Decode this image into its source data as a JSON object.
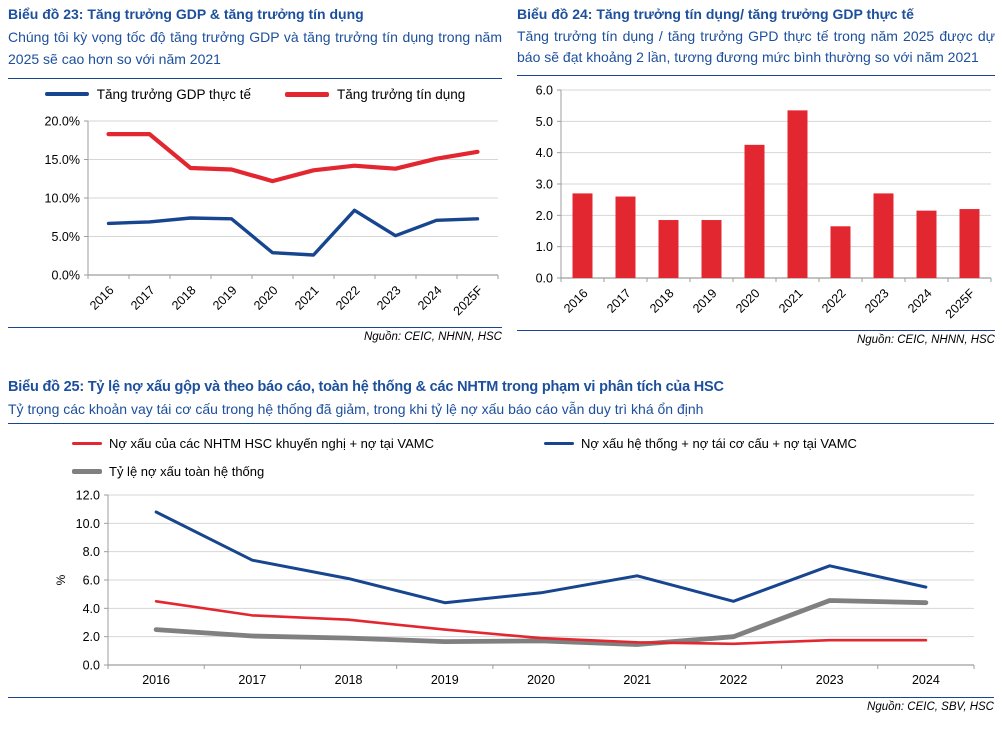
{
  "colors": {
    "navy_text": "#1C4F9C",
    "divider_navy": "#17458F",
    "series_red": "#E32730",
    "series_blue": "#17458F",
    "series_gray": "#808080",
    "gridline": "#D6D6D6",
    "axis_gray": "#9E9E9E"
  },
  "panels": [
    {
      "id": "chart23",
      "title": "Biểu đồ 23: Tăng trưởng GDP & tăng trưởng tín dụng",
      "subtitle": "Chúng tôi kỳ vọng tốc độ tăng trưởng GDP và tăng trưởng tín dụng trong năm 2025 sẽ cao hơn so với năm 2021",
      "source": "Nguồn: CEIC, NHNN, HSC"
    },
    {
      "id": "chart24",
      "title": "Biểu đồ 24: Tăng trưởng tín dụng/ tăng trưởng GDP thực tế",
      "subtitle": "Tăng trưởng tín dụng / tăng trưởng GPD thực tế trong năm 2025 được dự báo sẽ đạt khoảng 2 lần, tương đương mức bình thường so với năm 2021",
      "source": "Nguồn: CEIC, NHNN, HSC"
    },
    {
      "id": "chart25",
      "title": "Biểu đồ 25: Tỷ lệ nợ xấu gộp và theo báo cáo, toàn hệ thống & các NHTM trong phạm vi phân tích của HSC",
      "subtitle": "Tỷ trọng các khoản vay tái cơ cấu trong hệ thống đã giảm, trong khi tỷ lệ nợ xấu báo cáo vẫn duy trì khá ổn định",
      "source": "Nguồn: CEIC, SBV, HSC"
    }
  ],
  "chart_data": [
    {
      "id": "chart23",
      "type": "line",
      "title": "Tăng trưởng GDP & tăng trưởng tín dụng",
      "categories": [
        "2016",
        "2017",
        "2018",
        "2019",
        "2020",
        "2021",
        "2022",
        "2023",
        "2024",
        "2025F"
      ],
      "series": [
        {
          "name": "Tăng trưởng GDP thực tế",
          "color": "#17458F",
          "values": [
            6.7,
            6.9,
            7.4,
            7.3,
            2.9,
            2.6,
            8.4,
            5.1,
            7.1,
            7.3
          ]
        },
        {
          "name": "Tăng trưởng tín dụng",
          "color": "#E32730",
          "values": [
            18.3,
            18.3,
            13.9,
            13.7,
            12.2,
            13.6,
            14.2,
            13.8,
            15.1,
            16.0
          ]
        }
      ],
      "ylim": [
        0,
        20
      ],
      "ytick_step": 5,
      "ytick_format": "percent1",
      "grid": true,
      "legend_position": "top-center"
    },
    {
      "id": "chart24",
      "type": "bar",
      "title": "Tăng trưởng tín dụng/ tăng trưởng GDP thực tế (lần)",
      "categories": [
        "2016",
        "2017",
        "2018",
        "2019",
        "2020",
        "2021",
        "2022",
        "2023",
        "2024",
        "2025F"
      ],
      "values": [
        2.7,
        2.6,
        1.85,
        1.85,
        4.25,
        5.35,
        1.65,
        2.7,
        2.15,
        2.2
      ],
      "bar_color": "#E32730",
      "ylim": [
        0,
        6
      ],
      "ytick_step": 1,
      "ytick_format": "dec1",
      "grid": true,
      "legend_position": "none"
    },
    {
      "id": "chart25",
      "type": "line",
      "title": "Tỷ lệ nợ xấu gộp và theo báo cáo (%)",
      "categories": [
        "2016",
        "2017",
        "2018",
        "2019",
        "2020",
        "2021",
        "2022",
        "2023",
        "2024"
      ],
      "series": [
        {
          "name": "Nợ xấu của các NHTM HSC khuyến nghị + nợ tại VAMC",
          "color": "#E32730",
          "values": [
            4.5,
            3.5,
            3.2,
            2.5,
            1.9,
            1.6,
            1.5,
            1.75,
            1.75
          ]
        },
        {
          "name": "Nợ xấu hệ thống + nợ tái cơ cấu + nợ tại VAMC",
          "color": "#17458F",
          "values": [
            10.8,
            7.4,
            6.1,
            4.4,
            5.1,
            6.3,
            4.5,
            7.0,
            5.5
          ]
        },
        {
          "name": "Tỷ lệ nợ xấu toàn hệ thống",
          "color": "#808080",
          "values": [
            2.5,
            2.05,
            1.9,
            1.65,
            1.7,
            1.45,
            2.0,
            4.55,
            4.4
          ]
        }
      ],
      "ylim": [
        0,
        12
      ],
      "ytick_step": 2,
      "ytick_format": "dec1",
      "ylabel": "%",
      "grid": true,
      "legend_position": "top-left"
    }
  ]
}
